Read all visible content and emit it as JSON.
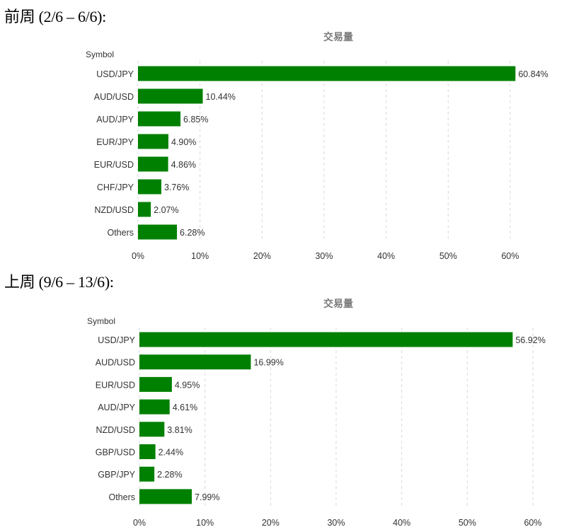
{
  "headings": {
    "previous_week": "前周 (2/6 – 6/6):",
    "last_week": "上周 (9/6 – 13/6):"
  },
  "chart_data": [
    {
      "type": "bar",
      "orientation": "horizontal",
      "title": "交易量",
      "ylabel": "Symbol",
      "xlabel": "",
      "categories": [
        "USD/JPY",
        "AUD/USD",
        "AUD/JPY",
        "EUR/JPY",
        "EUR/USD",
        "CHF/JPY",
        "NZD/USD",
        "Others"
      ],
      "values": [
        60.84,
        10.44,
        6.85,
        4.9,
        4.86,
        3.76,
        2.07,
        6.28
      ],
      "value_labels": [
        "60.84%",
        "10.44%",
        "6.85%",
        "4.90%",
        "4.86%",
        "3.76%",
        "2.07%",
        "6.28%"
      ],
      "xlim": [
        0,
        60
      ],
      "xticks": [
        0,
        10,
        20,
        30,
        40,
        50,
        60
      ],
      "xtick_labels": [
        "0%",
        "10%",
        "20%",
        "30%",
        "40%",
        "50%",
        "60%"
      ],
      "bar_color": "#008000",
      "grid": "vertical dashed",
      "legend": "none"
    },
    {
      "type": "bar",
      "orientation": "horizontal",
      "title": "交易量",
      "ylabel": "Symbol",
      "xlabel": "",
      "categories": [
        "USD/JPY",
        "AUD/USD",
        "EUR/USD",
        "AUD/JPY",
        "NZD/USD",
        "GBP/USD",
        "GBP/JPY",
        "Others"
      ],
      "values": [
        56.92,
        16.99,
        4.95,
        4.61,
        3.81,
        2.44,
        2.28,
        7.99
      ],
      "value_labels": [
        "56.92%",
        "16.99%",
        "4.95%",
        "4.61%",
        "3.81%",
        "2.44%",
        "2.28%",
        "7.99%"
      ],
      "xlim": [
        0,
        60
      ],
      "xticks": [
        0,
        10,
        20,
        30,
        40,
        50,
        60
      ],
      "xtick_labels": [
        "0%",
        "10%",
        "20%",
        "30%",
        "40%",
        "50%",
        "60%"
      ],
      "bar_color": "#008000",
      "grid": "vertical dashed",
      "legend": "none"
    }
  ]
}
